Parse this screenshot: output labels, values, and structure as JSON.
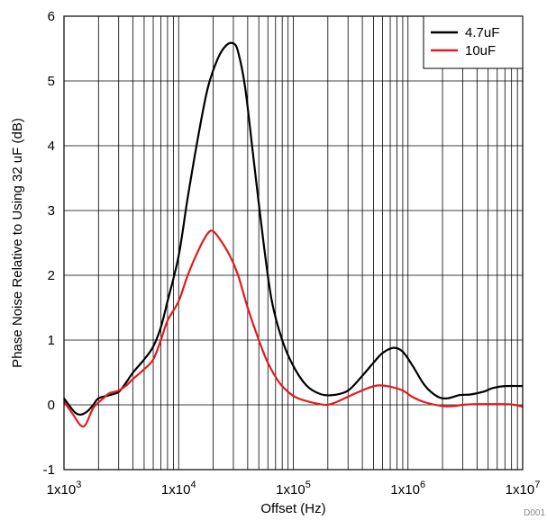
{
  "chart_data": {
    "type": "line",
    "xlabel": "Offset (Hz)",
    "ylabel": "Phase Noise Relative to Using 32 uF (dB)",
    "x_scale": "log",
    "xlim": [
      1000,
      10000000
    ],
    "ylim": [
      -1,
      6
    ],
    "x_ticks": [
      {
        "value": 1000,
        "base": "1x10",
        "exp": "3"
      },
      {
        "value": 10000,
        "base": "1x10",
        "exp": "4"
      },
      {
        "value": 100000,
        "base": "1x10",
        "exp": "5"
      },
      {
        "value": 1000000,
        "base": "1x10",
        "exp": "6"
      },
      {
        "value": 10000000,
        "base": "1x10",
        "exp": "7"
      }
    ],
    "y_ticks": [
      -1,
      0,
      1,
      2,
      3,
      4,
      5,
      6
    ],
    "grid": true,
    "legend_position": "top-right",
    "corner_label": "D001",
    "series": [
      {
        "name": "4.7uF",
        "color": "#000000",
        "points": [
          [
            1000,
            0.1
          ],
          [
            1100,
            0.0
          ],
          [
            1250,
            -0.12
          ],
          [
            1400,
            -0.15
          ],
          [
            1600,
            -0.1
          ],
          [
            1800,
            0.0
          ],
          [
            2000,
            0.1
          ],
          [
            2500,
            0.15
          ],
          [
            3000,
            0.2
          ],
          [
            3500,
            0.35
          ],
          [
            4000,
            0.5
          ],
          [
            5000,
            0.7
          ],
          [
            6000,
            0.9
          ],
          [
            7000,
            1.2
          ],
          [
            8000,
            1.6
          ],
          [
            10000,
            2.3
          ],
          [
            12000,
            3.2
          ],
          [
            15000,
            4.2
          ],
          [
            18000,
            4.9
          ],
          [
            22000,
            5.35
          ],
          [
            26000,
            5.55
          ],
          [
            30000,
            5.58
          ],
          [
            33000,
            5.45
          ],
          [
            38000,
            4.9
          ],
          [
            45000,
            3.8
          ],
          [
            55000,
            2.5
          ],
          [
            65000,
            1.6
          ],
          [
            80000,
            1.0
          ],
          [
            100000,
            0.6
          ],
          [
            130000,
            0.3
          ],
          [
            170000,
            0.17
          ],
          [
            220000,
            0.15
          ],
          [
            300000,
            0.22
          ],
          [
            400000,
            0.45
          ],
          [
            500000,
            0.65
          ],
          [
            600000,
            0.8
          ],
          [
            750000,
            0.88
          ],
          [
            900000,
            0.82
          ],
          [
            1100000,
            0.6
          ],
          [
            1400000,
            0.3
          ],
          [
            1800000,
            0.13
          ],
          [
            2200000,
            0.1
          ],
          [
            2800000,
            0.15
          ],
          [
            3500000,
            0.16
          ],
          [
            4500000,
            0.2
          ],
          [
            5500000,
            0.26
          ],
          [
            7000000,
            0.29
          ],
          [
            10000000,
            0.29
          ]
        ]
      },
      {
        "name": "10uF",
        "color": "#e41a1c",
        "points": [
          [
            1000,
            0.05
          ],
          [
            1200,
            -0.15
          ],
          [
            1400,
            -0.32
          ],
          [
            1550,
            -0.3
          ],
          [
            1800,
            -0.05
          ],
          [
            2200,
            0.1
          ],
          [
            2500,
            0.18
          ],
          [
            3000,
            0.22
          ],
          [
            3500,
            0.3
          ],
          [
            4000,
            0.4
          ],
          [
            5000,
            0.55
          ],
          [
            6000,
            0.7
          ],
          [
            7000,
            1.0
          ],
          [
            8000,
            1.3
          ],
          [
            10000,
            1.6
          ],
          [
            12000,
            2.0
          ],
          [
            15000,
            2.4
          ],
          [
            18000,
            2.65
          ],
          [
            20000,
            2.68
          ],
          [
            23000,
            2.55
          ],
          [
            28000,
            2.3
          ],
          [
            33000,
            2.0
          ],
          [
            40000,
            1.5
          ],
          [
            50000,
            1.0
          ],
          [
            60000,
            0.65
          ],
          [
            75000,
            0.35
          ],
          [
            90000,
            0.2
          ],
          [
            110000,
            0.1
          ],
          [
            150000,
            0.03
          ],
          [
            190000,
            0.0
          ],
          [
            220000,
            0.02
          ],
          [
            280000,
            0.1
          ],
          [
            350000,
            0.18
          ],
          [
            450000,
            0.26
          ],
          [
            550000,
            0.3
          ],
          [
            700000,
            0.28
          ],
          [
            900000,
            0.22
          ],
          [
            1100000,
            0.12
          ],
          [
            1400000,
            0.04
          ],
          [
            2000000,
            -0.02
          ],
          [
            2500000,
            -0.02
          ],
          [
            3000000,
            0.0
          ],
          [
            4000000,
            0.01
          ],
          [
            5000000,
            0.01
          ],
          [
            7000000,
            0.01
          ],
          [
            8500000,
            0.0
          ],
          [
            10000000,
            -0.03
          ]
        ]
      }
    ]
  }
}
